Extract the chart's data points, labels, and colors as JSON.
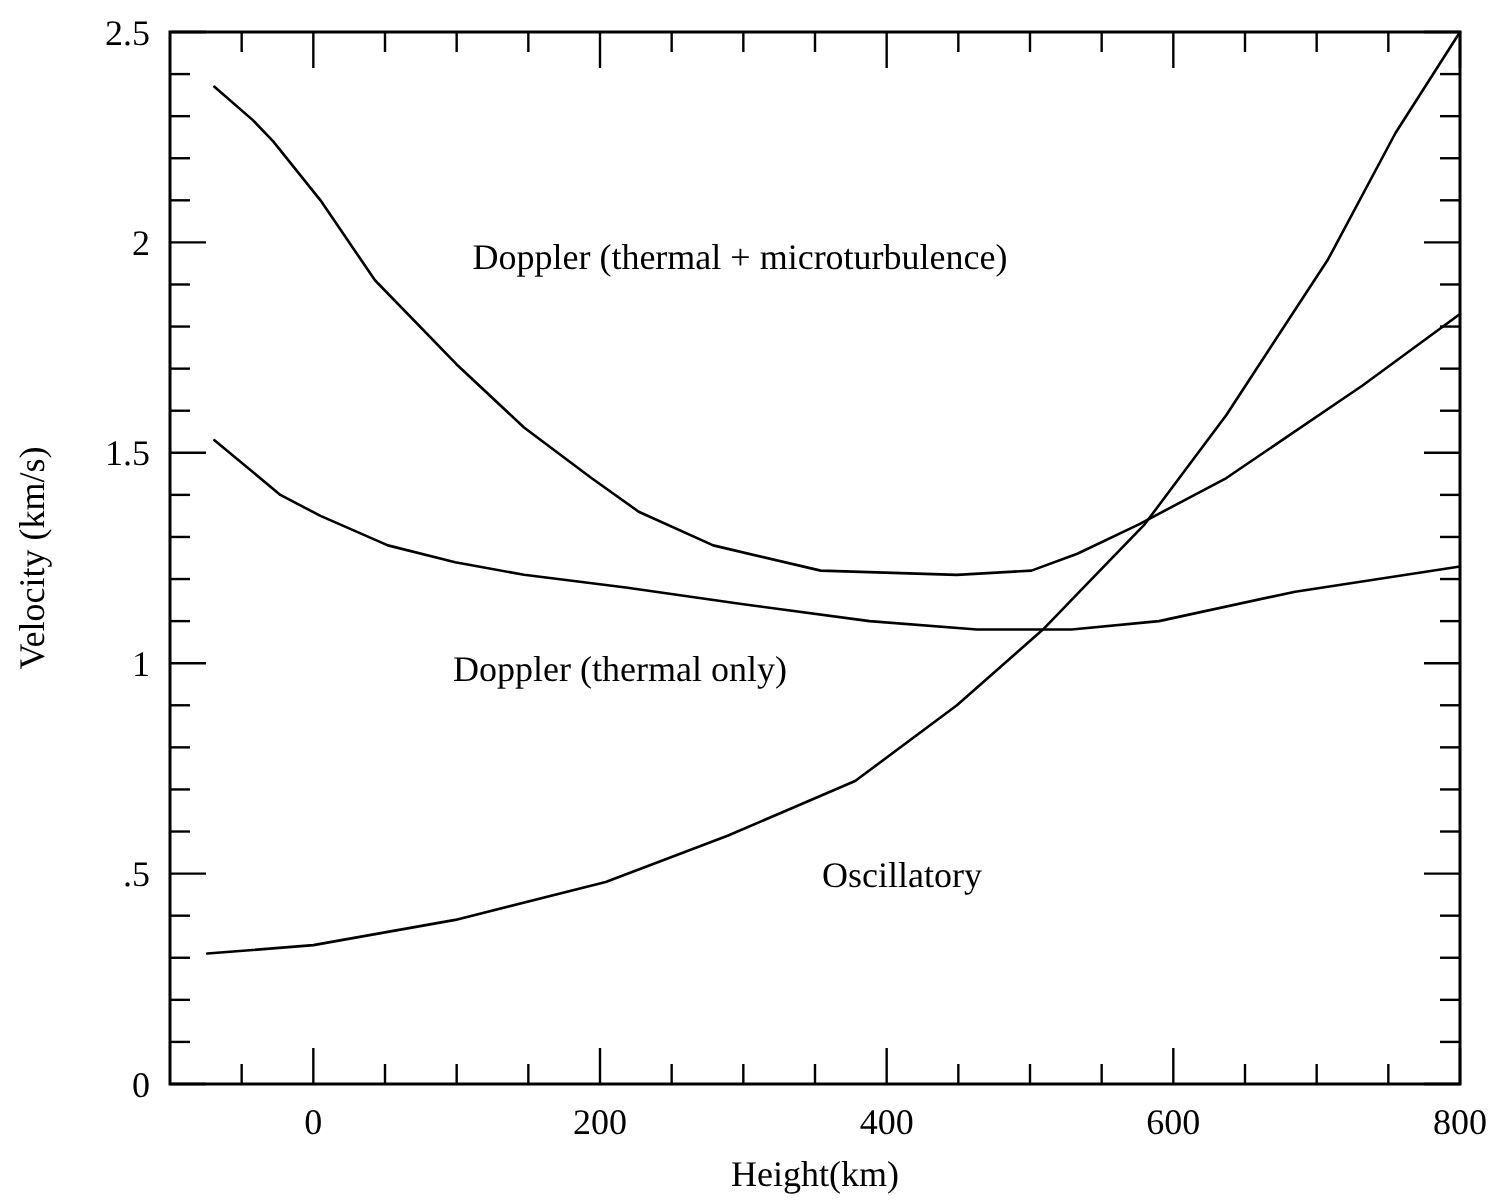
{
  "chart_data": {
    "type": "line",
    "xlabel": "Height(km)",
    "ylabel": "Velocity (km/s)",
    "xlim": [
      -100,
      800
    ],
    "ylim": [
      0,
      2.5
    ],
    "xticks": [
      {
        "value": -50,
        "label": null
      },
      0,
      {
        "value": 50,
        "label": null
      },
      {
        "value": 100,
        "label": null
      },
      {
        "value": 150,
        "label": null
      },
      200,
      {
        "value": 250,
        "label": null
      },
      {
        "value": 300,
        "label": null
      },
      {
        "value": 350,
        "label": null
      },
      400,
      {
        "value": 450,
        "label": null
      },
      {
        "value": 500,
        "label": null
      },
      {
        "value": 550,
        "label": null
      },
      600,
      {
        "value": 650,
        "label": null
      },
      {
        "value": 700,
        "label": null
      },
      {
        "value": 750,
        "label": null
      },
      800
    ],
    "yticks": [
      0,
      {
        "value": 0.1,
        "label": null
      },
      {
        "value": 0.2,
        "label": null
      },
      {
        "value": 0.3,
        "label": null
      },
      {
        "value": 0.4,
        "label": null
      },
      {
        "value": 0.5,
        "label": ".5"
      },
      {
        "value": 0.6,
        "label": null
      },
      {
        "value": 0.7,
        "label": null
      },
      {
        "value": 0.8,
        "label": null
      },
      {
        "value": 0.9,
        "label": null
      },
      1,
      {
        "value": 1.1,
        "label": null
      },
      {
        "value": 1.2,
        "label": null
      },
      {
        "value": 1.3,
        "label": null
      },
      {
        "value": 1.4,
        "label": null
      },
      1.5,
      {
        "value": 1.6,
        "label": null
      },
      {
        "value": 1.7,
        "label": null
      },
      {
        "value": 1.8,
        "label": null
      },
      {
        "value": 1.9,
        "label": null
      },
      2,
      {
        "value": 2.1,
        "label": null
      },
      {
        "value": 2.2,
        "label": null
      },
      {
        "value": 2.3,
        "label": null
      },
      {
        "value": 2.4,
        "label": null
      },
      2.5
    ],
    "grid": false,
    "marker": "none",
    "line_style": "solid",
    "series": [
      {
        "name": "Doppler (thermal + microturbulence)",
        "color": "#000000",
        "x": [
          -69,
          -42,
          -28,
          5,
          43,
          100,
          147,
          194,
          227,
          279,
          354,
          449,
          501,
          533,
          576,
          637,
          732,
          800
        ],
        "values": [
          2.37,
          2.29,
          2.24,
          2.1,
          1.91,
          1.71,
          1.56,
          1.44,
          1.36,
          1.28,
          1.22,
          1.21,
          1.22,
          1.26,
          1.33,
          1.44,
          1.66,
          1.83
        ]
      },
      {
        "name": "Doppler (thermal only)",
        "color": "#000000",
        "x": [
          -69,
          -23,
          5,
          52,
          99,
          147,
          218,
          300,
          388,
          463,
          529,
          590,
          685,
          800
        ],
        "values": [
          1.53,
          1.4,
          1.35,
          1.28,
          1.24,
          1.21,
          1.18,
          1.14,
          1.1,
          1.08,
          1.08,
          1.1,
          1.17,
          1.23
        ]
      },
      {
        "name": "Oscillatory",
        "color": "#000000",
        "x": [
          -74,
          0,
          99,
          204,
          289,
          378,
          449,
          509,
          543,
          580,
          637,
          708,
          755,
          800
        ],
        "values": [
          0.31,
          0.33,
          0.39,
          0.48,
          0.59,
          0.72,
          0.9,
          1.08,
          1.2,
          1.33,
          1.59,
          1.96,
          2.26,
          2.5
        ]
      }
    ]
  }
}
